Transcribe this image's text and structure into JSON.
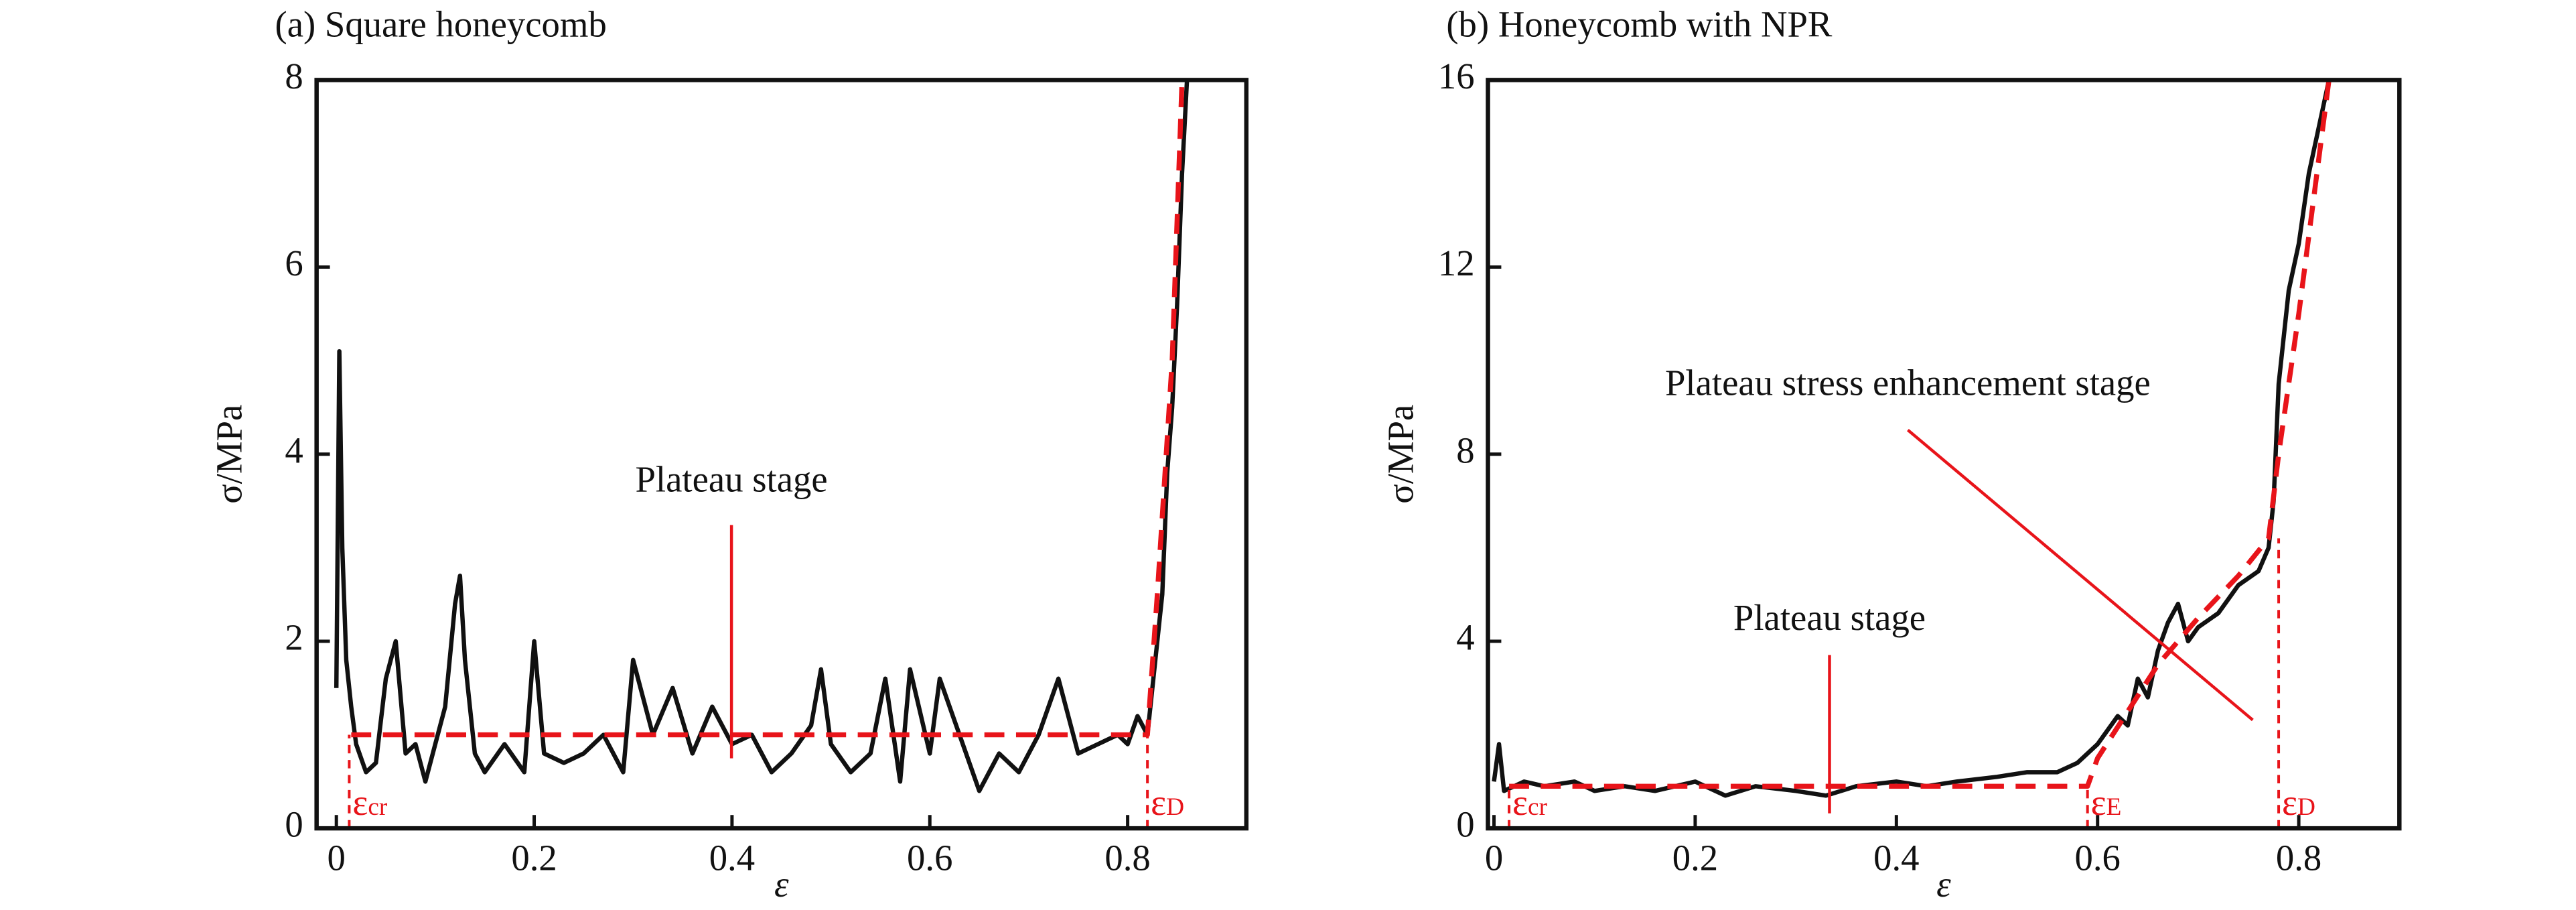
{
  "chart_data": [
    {
      "type": "line",
      "title": "(a) Square honeycomb",
      "x_label": "ε",
      "y_label": "σ/MPa",
      "xlim": [
        -0.02,
        0.92
      ],
      "ylim": [
        0,
        8
      ],
      "xticks": [
        0,
        0.2,
        0.4,
        0.6,
        0.8
      ],
      "yticks": [
        0,
        2,
        4,
        6,
        8
      ],
      "series": [
        {
          "color": "#111111",
          "x": [
            0,
            0.003,
            0.006,
            0.01,
            0.015,
            0.02,
            0.03,
            0.04,
            0.05,
            0.06,
            0.07,
            0.08,
            0.09,
            0.1,
            0.11,
            0.12,
            0.125,
            0.13,
            0.14,
            0.15,
            0.17,
            0.19,
            0.2,
            0.21,
            0.23,
            0.25,
            0.27,
            0.29,
            0.3,
            0.32,
            0.34,
            0.36,
            0.38,
            0.4,
            0.42,
            0.44,
            0.46,
            0.48,
            0.49,
            0.5,
            0.52,
            0.54,
            0.555,
            0.57,
            0.58,
            0.6,
            0.61,
            0.63,
            0.65,
            0.67,
            0.69,
            0.71,
            0.73,
            0.75,
            0.77,
            0.79,
            0.8,
            0.81,
            0.82,
            0.83,
            0.835,
            0.84,
            0.845,
            0.85,
            0.855,
            0.86
          ],
          "values": [
            1.5,
            5.1,
            3,
            1.8,
            1.3,
            0.9,
            0.6,
            0.7,
            1.6,
            2.0,
            0.8,
            0.9,
            0.5,
            0.9,
            1.3,
            2.4,
            2.7,
            1.8,
            0.8,
            0.6,
            0.9,
            0.6,
            2.0,
            0.8,
            0.7,
            0.8,
            1.0,
            0.6,
            1.8,
            1.0,
            1.5,
            0.8,
            1.3,
            0.9,
            1.0,
            0.6,
            0.8,
            1.1,
            1.7,
            0.9,
            0.6,
            0.8,
            1.6,
            0.5,
            1.7,
            0.8,
            1.6,
            1.0,
            0.4,
            0.8,
            0.6,
            1.0,
            1.6,
            0.8,
            0.9,
            1.0,
            0.9,
            1.2,
            1.0,
            2.0,
            2.5,
            3.8,
            4.5,
            5.6,
            7.0,
            8
          ]
        },
        {
          "color": "#e8141a",
          "dashed": true,
          "x": [
            0.015,
            0.82,
            0.83,
            0.845,
            0.855
          ],
          "values": [
            1,
            1,
            2.5,
            5,
            8
          ]
        }
      ],
      "markers": [
        {
          "x": 0.013,
          "y": 1,
          "symbol": "ε",
          "sub": "cr"
        },
        {
          "x": 0.82,
          "y": 1,
          "symbol": "ε",
          "sub": "D"
        }
      ],
      "annotations": [
        "Plateau stage"
      ]
    },
    {
      "type": "line",
      "title": "(b) Honeycomb with NPR",
      "x_label": "ε",
      "y_label": "σ/MPa",
      "xlim": [
        -0.006,
        0.9
      ],
      "ylim": [
        0,
        16
      ],
      "xticks": [
        0,
        0.2,
        0.4,
        0.6,
        0.8
      ],
      "yticks": [
        0,
        4,
        8,
        12,
        16
      ],
      "series": [
        {
          "color": "#111111",
          "x": [
            0,
            0.005,
            0.01,
            0.03,
            0.05,
            0.08,
            0.1,
            0.13,
            0.16,
            0.2,
            0.23,
            0.26,
            0.3,
            0.33,
            0.36,
            0.4,
            0.43,
            0.46,
            0.5,
            0.53,
            0.56,
            0.58,
            0.6,
            0.62,
            0.63,
            0.64,
            0.65,
            0.66,
            0.67,
            0.68,
            0.69,
            0.7,
            0.72,
            0.74,
            0.76,
            0.77,
            0.775,
            0.78,
            0.79,
            0.8,
            0.81,
            0.82,
            0.83
          ],
          "values": [
            1.0,
            1.8,
            0.8,
            1.0,
            0.9,
            1.0,
            0.8,
            0.9,
            0.8,
            1.0,
            0.7,
            0.9,
            0.8,
            0.7,
            0.9,
            1.0,
            0.9,
            1.0,
            1.1,
            1.2,
            1.2,
            1.4,
            1.8,
            2.4,
            2.2,
            3.2,
            2.8,
            3.8,
            4.4,
            4.8,
            4.0,
            4.3,
            4.6,
            5.2,
            5.5,
            6.0,
            7.0,
            9.5,
            11.5,
            12.5,
            14,
            15,
            16
          ]
        },
        {
          "color": "#e8141a",
          "dashed": true,
          "x": [
            0.015,
            0.59,
            0.6,
            0.63,
            0.66,
            0.7,
            0.74,
            0.77,
            0.78,
            0.8,
            0.83
          ],
          "values": [
            0.9,
            0.9,
            1.5,
            2.5,
            3.5,
            4.5,
            5.4,
            6.2,
            8,
            11,
            16
          ]
        }
      ],
      "markers": [
        {
          "x": 0.015,
          "y": 0.9,
          "symbol": "ε",
          "sub": "cr"
        },
        {
          "x": 0.59,
          "y": 0.9,
          "symbol": "ε",
          "sub": "E"
        },
        {
          "x": 0.78,
          "y": 6.2,
          "symbol": "ε",
          "sub": "D"
        }
      ],
      "annotations": [
        "Plateau stage",
        "Plateau stress enhancement stage"
      ]
    }
  ]
}
